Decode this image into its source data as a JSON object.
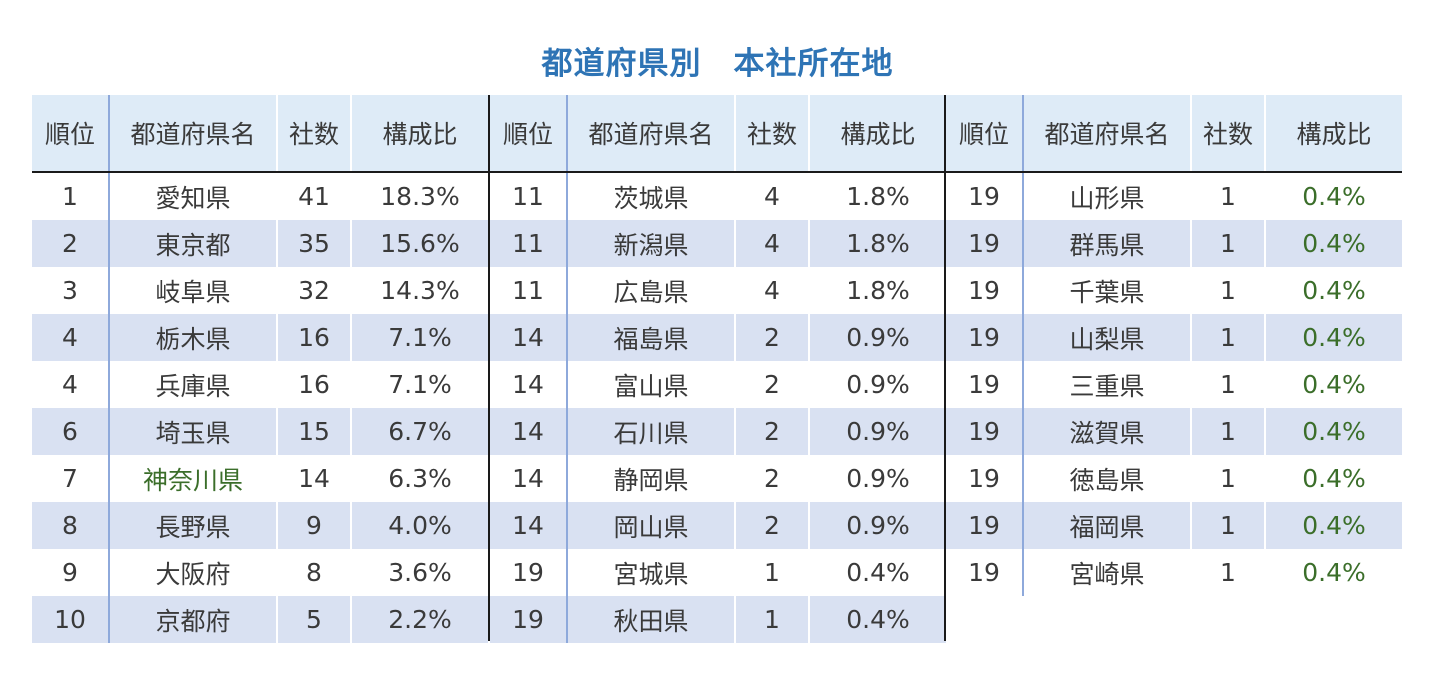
{
  "title": "都道府県別　本社所在地",
  "headers": {
    "rank": "順位",
    "pref": "都道府県名",
    "count": "社数",
    "ratio": "構成比"
  },
  "blocks": [
    {
      "rows": [
        {
          "rank": "1",
          "pref": "愛知県",
          "count": "41",
          "ratio": "18.3%"
        },
        {
          "rank": "2",
          "pref": "東京都",
          "count": "35",
          "ratio": "15.6%"
        },
        {
          "rank": "3",
          "pref": "岐阜県",
          "count": "32",
          "ratio": "14.3%"
        },
        {
          "rank": "4",
          "pref": "栃木県",
          "count": "16",
          "ratio": "7.1%"
        },
        {
          "rank": "4",
          "pref": "兵庫県",
          "count": "16",
          "ratio": "7.1%"
        },
        {
          "rank": "6",
          "pref": "埼玉県",
          "count": "15",
          "ratio": "6.7%"
        },
        {
          "rank": "7",
          "pref": "神奈川県",
          "count": "14",
          "ratio": "6.3%"
        },
        {
          "rank": "8",
          "pref": "長野県",
          "count": "9",
          "ratio": "4.0%"
        },
        {
          "rank": "9",
          "pref": "大阪府",
          "count": "8",
          "ratio": "3.6%"
        },
        {
          "rank": "10",
          "pref": "京都府",
          "count": "5",
          "ratio": "2.2%"
        }
      ]
    },
    {
      "rows": [
        {
          "rank": "11",
          "pref": "茨城県",
          "count": "4",
          "ratio": "1.8%"
        },
        {
          "rank": "11",
          "pref": "新潟県",
          "count": "4",
          "ratio": "1.8%"
        },
        {
          "rank": "11",
          "pref": "広島県",
          "count": "4",
          "ratio": "1.8%"
        },
        {
          "rank": "14",
          "pref": "福島県",
          "count": "2",
          "ratio": "0.9%"
        },
        {
          "rank": "14",
          "pref": "富山県",
          "count": "2",
          "ratio": "0.9%"
        },
        {
          "rank": "14",
          "pref": "石川県",
          "count": "2",
          "ratio": "0.9%"
        },
        {
          "rank": "14",
          "pref": "静岡県",
          "count": "2",
          "ratio": "0.9%"
        },
        {
          "rank": "14",
          "pref": "岡山県",
          "count": "2",
          "ratio": "0.9%"
        },
        {
          "rank": "19",
          "pref": "宮城県",
          "count": "1",
          "ratio": "0.4%"
        },
        {
          "rank": "19",
          "pref": "秋田県",
          "count": "1",
          "ratio": "0.4%"
        }
      ]
    },
    {
      "rows": [
        {
          "rank": "19",
          "pref": "山形県",
          "count": "1",
          "ratio": "0.4%"
        },
        {
          "rank": "19",
          "pref": "群馬県",
          "count": "1",
          "ratio": "0.4%"
        },
        {
          "rank": "19",
          "pref": "千葉県",
          "count": "1",
          "ratio": "0.4%"
        },
        {
          "rank": "19",
          "pref": "山梨県",
          "count": "1",
          "ratio": "0.4%"
        },
        {
          "rank": "19",
          "pref": "三重県",
          "count": "1",
          "ratio": "0.4%"
        },
        {
          "rank": "19",
          "pref": "滋賀県",
          "count": "1",
          "ratio": "0.4%"
        },
        {
          "rank": "19",
          "pref": "徳島県",
          "count": "1",
          "ratio": "0.4%"
        },
        {
          "rank": "19",
          "pref": "福岡県",
          "count": "1",
          "ratio": "0.4%"
        },
        {
          "rank": "19",
          "pref": "宮崎県",
          "count": "1",
          "ratio": "0.4%"
        }
      ]
    }
  ],
  "colors": {
    "title": "#2e74b5",
    "header_bg": "#deebf7",
    "band_bg": "#d9e1f2",
    "divider": "#8ea9db",
    "green_text": "#3b6e2a"
  }
}
